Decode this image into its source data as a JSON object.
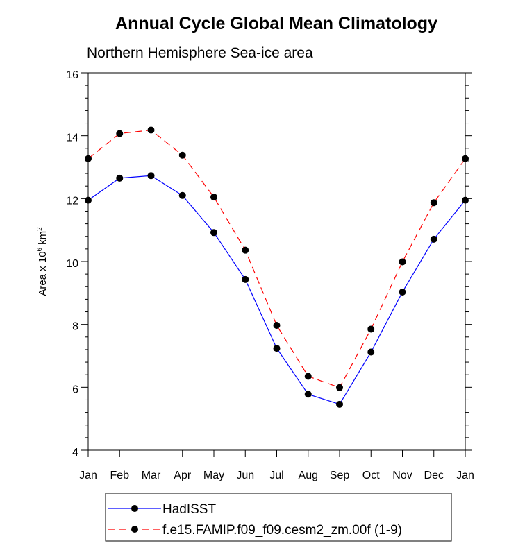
{
  "chart_data": {
    "type": "line",
    "title": "Annual Cycle Global Mean Climatology",
    "subtitle": "Northern Hemisphere Sea-ice area",
    "ylabel": "Area x 10",
    "ylabel_exp": "6",
    "ylabel_unit": "km",
    "ylabel_unit_exp": "2",
    "xlabel": "",
    "categories": [
      "Jan",
      "Feb",
      "Mar",
      "Apr",
      "May",
      "Jun",
      "Jul",
      "Aug",
      "Sep",
      "Oct",
      "Nov",
      "Dec",
      "Jan"
    ],
    "ylim": [
      4,
      16
    ],
    "yticks": [
      4,
      6,
      8,
      10,
      12,
      14,
      16
    ],
    "grid": false,
    "legend_position": "bottom",
    "series": [
      {
        "name": "HadISST",
        "color": "#0000ff",
        "dash": "solid",
        "values": [
          11.95,
          12.65,
          12.73,
          12.1,
          10.92,
          9.43,
          7.24,
          5.78,
          5.46,
          7.12,
          9.03,
          10.71,
          11.95
        ]
      },
      {
        "name": "f.e15.FAMIP.f09_f09.cesm2_zm.00f (1-9)",
        "color": "#ff0000",
        "dash": "dashed",
        "values": [
          13.27,
          14.07,
          14.18,
          13.38,
          12.05,
          10.36,
          7.97,
          6.35,
          5.99,
          7.85,
          9.99,
          11.87,
          13.27
        ]
      }
    ]
  }
}
